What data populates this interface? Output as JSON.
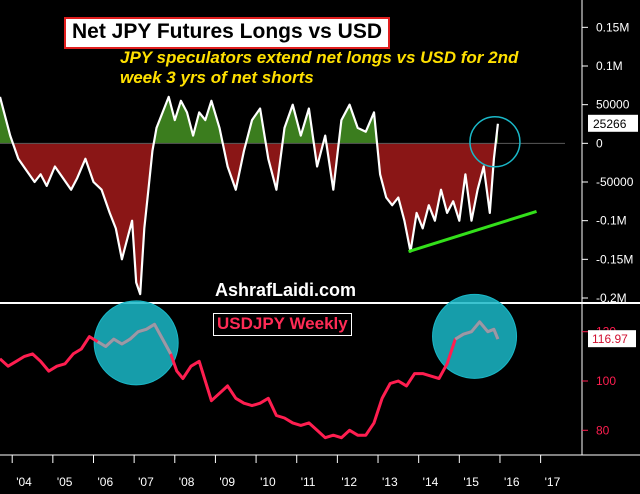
{
  "title": "Net JPY Futures Longs vs USD",
  "subtitle": "JPY speculators extend net longs vs USD for 2nd week 3 yrs of net shorts",
  "watermark": "AshrafLaidi.com",
  "lower_title": "USDJPY Weekly",
  "colors": {
    "background": "#000000",
    "positive_fill": "#3b7d1e",
    "negative_fill": "#8a1616",
    "upper_line": "#ffffff",
    "lower_line": "#ff1e50",
    "highlight": "#9a9aa6",
    "trendline": "#33e01a",
    "circle": "#1ab8c8"
  },
  "chart_data": [
    {
      "type": "area",
      "title": "Net JPY Futures Longs vs USD",
      "xlabel": "",
      "ylabel": "",
      "ylim": [
        -200000,
        175000
      ],
      "y_ticks": [
        150000,
        100000,
        50000,
        0,
        -50000,
        -100000,
        -150000,
        -200000
      ],
      "y_tick_labels": [
        "0.15M",
        "0.1M",
        "50000",
        "0",
        "-50000",
        "-0.1M",
        "-0.15M",
        "-0.2M"
      ],
      "last_value": 25266,
      "last_value_label": "25266",
      "series": [
        {
          "x": [
            2003.7,
            2003.95,
            2004.15,
            2004.35,
            2004.55,
            2004.7,
            2004.85,
            2005.05,
            2005.25,
            2005.45,
            2005.6,
            2005.8,
            2006.0,
            2006.2,
            2006.4,
            2006.55,
            2006.7,
            2006.85,
            2006.95,
            2007.05,
            2007.15,
            2007.25,
            2007.35,
            2007.45,
            2007.55,
            2007.7,
            2007.85,
            2008.0,
            2008.15,
            2008.3,
            2008.45,
            2008.6,
            2008.75,
            2008.9,
            2009.1,
            2009.3,
            2009.5,
            2009.7,
            2009.9,
            2010.1,
            2010.3,
            2010.5,
            2010.7,
            2010.9,
            2011.1,
            2011.3,
            2011.5,
            2011.7,
            2011.9,
            2012.1,
            2012.3,
            2012.5,
            2012.7,
            2012.9,
            2013.05,
            2013.2,
            2013.35,
            2013.5,
            2013.65,
            2013.8,
            2013.95,
            2014.1,
            2014.25,
            2014.4,
            2014.55,
            2014.7,
            2014.85,
            2015.0,
            2015.15,
            2015.3,
            2015.45,
            2015.6,
            2015.75,
            2015.85,
            2015.95
          ],
          "values": [
            60000,
            10000,
            -20000,
            -35000,
            -50000,
            -40000,
            -55000,
            -30000,
            -45000,
            -60000,
            -45000,
            -20000,
            -50000,
            -60000,
            -90000,
            -110000,
            -150000,
            -120000,
            -100000,
            -180000,
            -195000,
            -110000,
            -60000,
            -10000,
            20000,
            40000,
            60000,
            30000,
            55000,
            40000,
            10000,
            40000,
            30000,
            55000,
            20000,
            -30000,
            -60000,
            -10000,
            30000,
            45000,
            -20000,
            -60000,
            20000,
            50000,
            10000,
            45000,
            -30000,
            10000,
            -60000,
            30000,
            50000,
            20000,
            15000,
            40000,
            -40000,
            -70000,
            -80000,
            -70000,
            -100000,
            -140000,
            -90000,
            -110000,
            -80000,
            -100000,
            -60000,
            -90000,
            -75000,
            -100000,
            -40000,
            -100000,
            -60000,
            -30000,
            -90000,
            -20000,
            25266
          ]
        }
      ],
      "annotations": [
        "rising support trendline under 2013-2015 lows",
        "circle at latest reading"
      ]
    },
    {
      "type": "line",
      "title": "USDJPY Weekly",
      "xlabel": "",
      "ylabel": "",
      "ylim": [
        72,
        128
      ],
      "y_ticks": [
        120,
        100,
        80
      ],
      "y_tick_labels": [
        "120",
        "100",
        "80"
      ],
      "last_value": 116.97,
      "last_value_label": "116.97",
      "x_tick_labels": [
        "'04",
        "'05",
        "'06",
        "'07",
        "'08",
        "'09",
        "'10",
        "'11",
        "'12",
        "'13",
        "'14",
        "'15",
        "'16",
        "'17"
      ],
      "x_ticks": [
        2004,
        2005,
        2006,
        2007,
        2008,
        2009,
        2010,
        2011,
        2012,
        2013,
        2014,
        2015,
        2016,
        2017
      ],
      "xlim": [
        2003.7,
        2017.6
      ],
      "series": [
        {
          "x": [
            2003.7,
            2003.9,
            2004.1,
            2004.3,
            2004.5,
            2004.7,
            2004.9,
            2005.1,
            2005.3,
            2005.5,
            2005.7,
            2005.9,
            2006.1,
            2006.3,
            2006.5,
            2006.7,
            2006.9,
            2007.1,
            2007.3,
            2007.5,
            2007.7,
            2007.9,
            2008.05,
            2008.2,
            2008.4,
            2008.6,
            2008.75,
            2008.9,
            2009.1,
            2009.3,
            2009.5,
            2009.7,
            2009.9,
            2010.1,
            2010.3,
            2010.5,
            2010.7,
            2010.9,
            2011.1,
            2011.3,
            2011.5,
            2011.7,
            2011.9,
            2012.1,
            2012.3,
            2012.5,
            2012.7,
            2012.9,
            2013.1,
            2013.3,
            2013.5,
            2013.7,
            2013.9,
            2014.1,
            2014.3,
            2014.5,
            2014.7,
            2014.9,
            2015.1,
            2015.3,
            2015.5,
            2015.7,
            2015.85,
            2015.95
          ],
          "values": [
            109,
            106,
            108,
            110,
            111,
            108,
            104,
            106,
            107,
            111,
            113,
            118,
            116,
            114,
            117,
            115,
            117,
            120,
            121,
            123,
            117,
            111,
            104,
            101,
            106,
            108,
            100,
            92,
            95,
            98,
            93,
            91,
            90,
            91,
            93,
            86,
            85,
            83,
            82,
            83,
            80,
            77,
            78,
            77,
            80,
            78,
            78,
            83,
            93,
            99,
            100,
            98,
            103,
            103,
            102,
            101,
            107,
            117,
            119,
            120,
            124,
            120,
            121,
            117
          ]
        }
      ],
      "highlighted_ranges": [
        [
          2006.1,
          2008.0
        ],
        [
          2014.8,
          2015.95
        ]
      ]
    }
  ]
}
